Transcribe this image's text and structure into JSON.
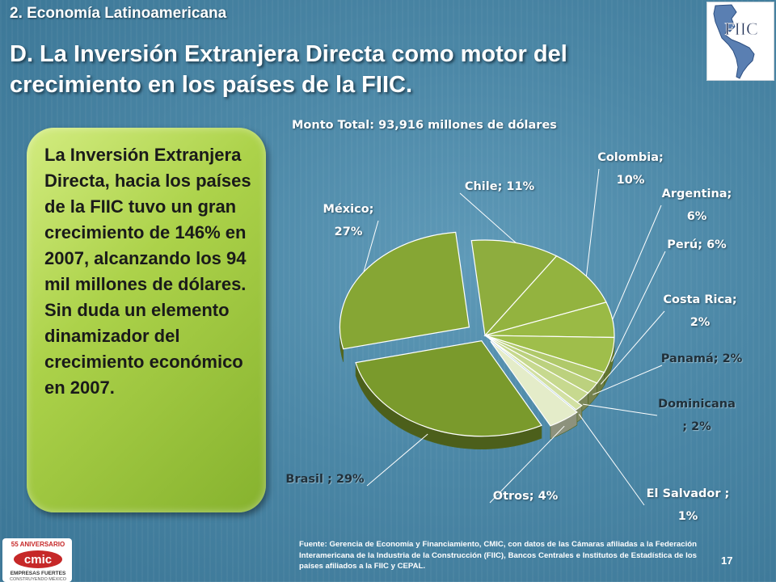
{
  "header": {
    "section": "2. Economía Latinoamericana",
    "title": "D. La Inversión Extranjera Directa como motor del crecimiento en los países de la FIIC."
  },
  "logo": {
    "text": "FIIC"
  },
  "callout": {
    "text": "La Inversión Extranjera Directa, hacia los países de la FIIC tuvo un gran crecimiento de 146% en 2007, alcanzando los 94 mil millones de dólares.  Sin duda un elemento dinamizador del crecimiento económico en 2007."
  },
  "chart_data": {
    "type": "pie",
    "title": "Monto Total: 93,916 millones de dólares",
    "slices": [
      {
        "name": "Chile",
        "value": 11,
        "label_line1": "Chile; 11%",
        "label_line2": "",
        "color": "#8ead3e"
      },
      {
        "name": "Colombia",
        "value": 10,
        "label_line1": "Colombia;",
        "label_line2": "10%",
        "color": "#93b33f"
      },
      {
        "name": "Argentina",
        "value": 6,
        "label_line1": "Argentina;",
        "label_line2": "6%",
        "color": "#9aba45"
      },
      {
        "name": "Perú",
        "value": 6,
        "label_line1": "Perú; 6%",
        "label_line2": "",
        "color": "#9fbe4b"
      },
      {
        "name": "Costa Rica",
        "value": 2,
        "label_line1": "Costa Rica;",
        "label_line2": "2%",
        "color": "#b0c96a"
      },
      {
        "name": "Panamá",
        "value": 2,
        "label_line1": "Panamá; 2%",
        "label_line2": "",
        "color": "#bcd17e"
      },
      {
        "name": "Dominicana",
        "value": 2,
        "label_line1": "Dominicana",
        "label_line2": "; 2%",
        "color": "#c7d98f"
      },
      {
        "name": "El Salvador",
        "value": 1,
        "label_line1": "El Salvador ;",
        "label_line2": "1%",
        "color": "#d2e0a3"
      },
      {
        "name": "Otros",
        "value": 4,
        "label_line1": "Otros; 4%",
        "label_line2": "",
        "color": "#e4ecc9"
      },
      {
        "name": "Brasil",
        "value": 29,
        "label_line1": "Brasil ; 29%",
        "label_line2": "",
        "color": "#7a9a2c"
      },
      {
        "name": "México",
        "value": 27,
        "label_line1": "México;",
        "label_line2": "27%",
        "color": "#86a634"
      }
    ],
    "legend": "none"
  },
  "footer": {
    "source": "Fuente: Gerencia de Economía y Financiamiento, CMIC, con datos de las Cámaras afiliadas a la Federación Interamericana de la Industria de la Construcción (FIIC), Bancos Centrales e Institutos de Estadística de los países afiliados a la FIIC y CEPAL.",
    "page_number": "17",
    "cmic_logo": {
      "line1": "55 ANIVERSARIO",
      "brand": "cmic",
      "line2": "EMPRESAS FUERTES",
      "line3": "CONSTRUYENDO MÉXICO"
    }
  }
}
